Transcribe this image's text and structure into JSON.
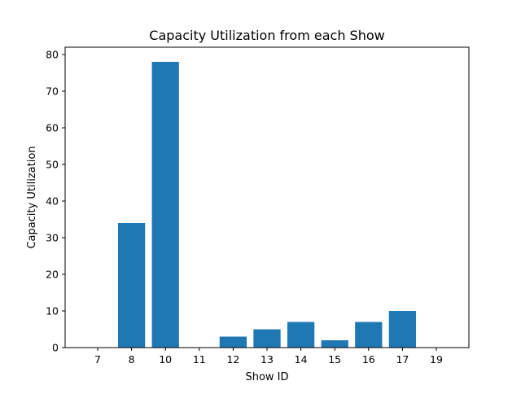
{
  "chart_data": {
    "type": "bar",
    "title": "Capacity Utilization from each Show",
    "xlabel": "Show ID",
    "ylabel": "Capacity Utilization",
    "categories": [
      "7",
      "8",
      "10",
      "11",
      "12",
      "13",
      "14",
      "15",
      "16",
      "17",
      "19"
    ],
    "values": [
      0,
      34,
      78,
      0,
      3,
      5,
      7,
      2,
      7,
      10,
      0
    ],
    "ylim": [
      0,
      82
    ],
    "yticks": [
      0,
      10,
      20,
      30,
      40,
      50,
      60,
      70,
      80
    ],
    "grid": false,
    "legend": "none",
    "bar_color": "#1f77b4"
  }
}
